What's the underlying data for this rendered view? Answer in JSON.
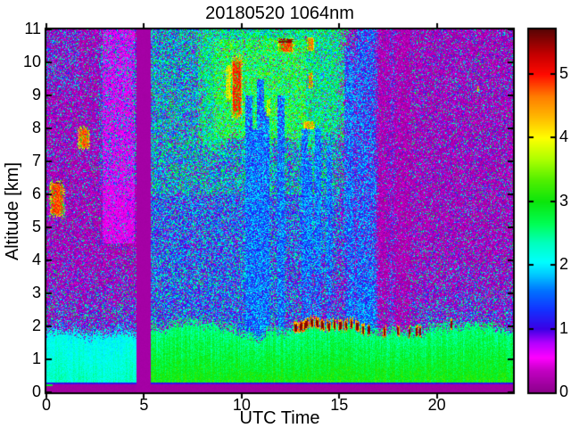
{
  "chart_data": {
    "type": "heatmap",
    "title": "20180520 1064nm",
    "date": "20180520",
    "wavelength": "1064nm",
    "xlabel": "UTC Time",
    "ylabel": "Altitude [km]",
    "x_range": [
      0,
      23.9
    ],
    "y_range": [
      0,
      11
    ],
    "x_ticks": [
      0,
      5,
      10,
      15,
      20
    ],
    "y_ticks": [
      0,
      1,
      2,
      3,
      4,
      5,
      6,
      7,
      8,
      9,
      10,
      11
    ],
    "grid": false,
    "legend": "colorbar-right",
    "colorbar": {
      "ticks": [
        0,
        1,
        2,
        3,
        4,
        5
      ],
      "range": [
        0,
        5.7
      ],
      "stops": [
        [
          0.0,
          "#8b008b"
        ],
        [
          0.35,
          "#c400c4"
        ],
        [
          0.55,
          "#ff00ff"
        ],
        [
          0.78,
          "#b400ff"
        ],
        [
          1.0,
          "#3c00e6"
        ],
        [
          1.3,
          "#1432ff"
        ],
        [
          1.6,
          "#0073ff"
        ],
        [
          1.85,
          "#00c8ff"
        ],
        [
          2.05,
          "#00ffff"
        ],
        [
          2.35,
          "#00ffbe"
        ],
        [
          2.65,
          "#00ff55"
        ],
        [
          3.0,
          "#0ce60c"
        ],
        [
          3.35,
          "#55f000"
        ],
        [
          3.65,
          "#aaff00"
        ],
        [
          4.0,
          "#ffff00"
        ],
        [
          4.3,
          "#ffbe00"
        ],
        [
          4.65,
          "#ff7d00"
        ],
        [
          5.0,
          "#ff0a00"
        ],
        [
          5.3,
          "#c80000"
        ],
        [
          5.7,
          "#5a0505"
        ]
      ]
    },
    "notable_features": [
      "data gap: solid magenta vertical band UTC 4.6-5.33, full altitude range",
      "boundary layer: cyan (value ~2.1) UTC 0-4.6, green (value ~2.7-3.1) UTC 5.3-24, top ~1.8-2.2 km",
      "dark-red attenuating cloud spots (value ~5.5) on boundary-layer top UTC 12.7-20.8",
      "dense blue-cyan speckle field aloft UTC 5.3-16.5 up to 11 km",
      "green cirrus field UTC 7.4-16 at 7.2-11 km with red cores",
      "red aerosol plume UTC 0-1 at 5.2-6.5 km and UTC 1.6-2.3 at 7.3-8.1 km",
      "strong red cloud streak UTC 9.4-10.1 at 8.1-10.4 km",
      "orange cloud UTC 11.8-12.8 at 10.25-10.8 km",
      "blue vertical fall streaks near UTC 10.4-17.7, bright cluster UTC 16-16.8",
      "surface: magenta below 0.25 km, dark blue line at 0.25-0.31 km"
    ],
    "render": {
      "seed": 42,
      "gap_stripe": {
        "t0": 4.6,
        "t1": 5.33,
        "value": 0.14
      },
      "surface": {
        "magenta_top_km": 0.25,
        "blue_line_top_km": 0.31
      },
      "boundary_layer": {
        "left_base_value": 1.9,
        "right_base_value": 2.25,
        "top_km_left": 1.8,
        "top_km_right": 1.93
      },
      "cap_spots": [
        [
          12.78,
          0.1
        ],
        [
          13.03,
          0.13
        ],
        [
          13.3,
          0.14
        ],
        [
          13.6,
          0.13
        ],
        [
          13.88,
          0.12
        ],
        [
          14.15,
          0.13
        ],
        [
          14.45,
          0.12
        ],
        [
          14.75,
          0.1
        ],
        [
          15.05,
          0.11
        ],
        [
          15.35,
          0.1
        ],
        [
          15.62,
          0.09
        ],
        [
          15.92,
          0.1
        ],
        [
          16.22,
          0.08
        ],
        [
          16.52,
          0.09
        ],
        [
          17.32,
          0.08
        ],
        [
          18.02,
          0.07
        ],
        [
          18.6,
          0.06
        ],
        [
          18.98,
          0.07
        ],
        [
          19.15,
          0.05
        ],
        [
          20.75,
          0.06
        ]
      ],
      "red_features": [
        {
          "t0": 0.08,
          "t1": 1.02,
          "a0": 5.2,
          "a1": 6.5,
          "peak": 5.0,
          "darktop": 1
        },
        {
          "t0": 1.55,
          "t1": 2.3,
          "a0": 7.3,
          "a1": 8.1,
          "peak": 4.9,
          "darktop": 0
        },
        {
          "t0": 9.42,
          "t1": 10.1,
          "a0": 8.1,
          "a1": 10.4,
          "peak": 5.1,
          "darktop": 0
        },
        {
          "t0": 9.15,
          "t1": 9.5,
          "a0": 8.7,
          "a1": 10.1,
          "peak": 4.3,
          "darktop": 0
        },
        {
          "t0": 11.75,
          "t1": 12.8,
          "a0": 10.25,
          "a1": 10.78,
          "peak": 5.0,
          "darktop": 1
        },
        {
          "t0": 13.3,
          "t1": 13.75,
          "a0": 10.3,
          "a1": 10.8,
          "peak": 4.8,
          "darktop": 0
        },
        {
          "t0": 13.38,
          "t1": 13.68,
          "a0": 9.15,
          "a1": 9.8,
          "peak": 4.8,
          "darktop": 0
        },
        {
          "t0": 13.1,
          "t1": 13.8,
          "a0": 7.95,
          "a1": 8.25,
          "peak": 4.6,
          "darktop": 0
        },
        {
          "t0": 11.25,
          "t1": 11.5,
          "a0": 8.3,
          "a1": 8.95,
          "peak": 4.2,
          "darktop": 0
        },
        {
          "t0": 22.05,
          "t1": 22.2,
          "a0": 9.1,
          "a1": 9.3,
          "peak": 4.6,
          "darktop": 0
        }
      ],
      "blue_streaks": [
        {
          "t": 10.38,
          "w": 0.07,
          "s": 0.55,
          "a1": 9.0
        },
        {
          "t": 10.62,
          "w": 0.06,
          "s": 0.5,
          "a1": 8.0
        },
        {
          "t": 10.98,
          "w": 0.07,
          "s": 0.5,
          "a1": 9.5
        },
        {
          "t": 11.28,
          "w": 0.06,
          "s": 0.45,
          "a1": 8.5
        },
        {
          "t": 12.02,
          "w": 0.07,
          "s": 0.5,
          "a1": 9.0
        },
        {
          "t": 13.22,
          "w": 0.06,
          "s": 0.5,
          "a1": 8.0
        },
        {
          "t": 13.5,
          "w": 0.05,
          "s": 0.45,
          "a1": 7.0
        },
        {
          "t": 13.92,
          "w": 0.06,
          "s": 0.5,
          "a1": 8.0
        },
        {
          "t": 14.48,
          "w": 0.06,
          "s": 0.45,
          "a1": 7.5
        },
        {
          "t": 15.48,
          "w": 0.07,
          "s": 0.6,
          "a1": 10.5
        },
        {
          "t": 15.68,
          "w": 0.06,
          "s": 0.55,
          "a1": 10.0
        },
        {
          "t": 16.08,
          "w": 0.08,
          "s": 0.85,
          "a1": 11
        },
        {
          "t": 16.25,
          "w": 0.07,
          "s": 0.8,
          "a1": 11
        },
        {
          "t": 16.42,
          "w": 0.08,
          "s": 0.85,
          "a1": 11
        },
        {
          "t": 16.6,
          "w": 0.07,
          "s": 0.8,
          "a1": 11
        },
        {
          "t": 16.78,
          "w": 0.07,
          "s": 0.75,
          "a1": 11
        },
        {
          "t": 17.68,
          "w": 0.08,
          "s": 0.7,
          "a1": 11
        }
      ],
      "magenta_streaks": [
        {
          "t": 17.18,
          "w": 0.09
        },
        {
          "t": 17.45,
          "w": 0.08
        },
        {
          "t": 17.95,
          "w": 0.09
        },
        {
          "t": 18.2,
          "w": 0.08
        },
        {
          "t": 18.45,
          "w": 0.07
        }
      ],
      "pink_streaks": [
        {
          "t": 3.05,
          "w": 0.06
        },
        {
          "t": 3.4,
          "w": 0.05
        },
        {
          "t": 3.75,
          "w": 0.06
        },
        {
          "t": 4.05,
          "w": 0.05
        },
        {
          "t": 4.35,
          "w": 0.05
        }
      ]
    }
  }
}
